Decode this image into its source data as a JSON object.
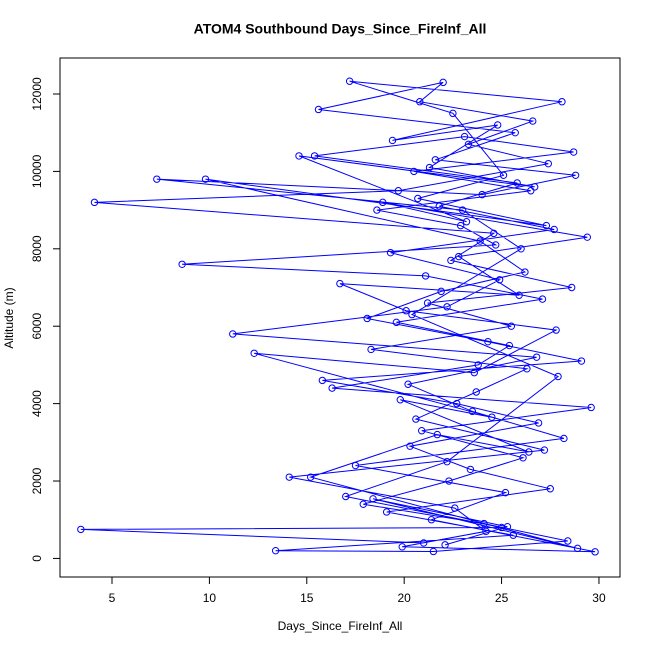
{
  "chart_data": {
    "type": "line",
    "title": "ATOM4 Southbound Days_Since_FireInf_All",
    "x_label": "Days_Since_FireInf_All",
    "y_label": "Altitude (m)",
    "color": "#0000ff",
    "x": [
      22.1,
      25.3,
      18.4,
      28.9,
      15.2,
      21.7,
      26.4,
      19.8,
      24.5,
      12.3,
      23.6,
      27.8,
      20.1,
      16.7,
      25.9,
      22.8,
      29.4,
      18.9,
      23.2,
      14.6,
      26.7,
      21.3,
      24.8,
      19.4,
      28.1,
      17.2,
      22.5,
      25.1,
      20.7,
      27.3,
      9.8,
      23.9,
      26.2,
      21.9,
      18.1,
      24.3,
      29.1,
      15.8,
      22.7,
      26.9,
      20.3,
      23.4,
      27.5,
      19.1,
      25.6,
      13.4,
      21.5,
      28.4,
      24.1,
      17.9,
      22.3,
      26.1,
      20.9,
      29.6,
      16.3,
      23.8,
      25.4,
      19.6,
      27.1,
      21.1,
      8.6,
      24.7,
      22.9,
      18.6,
      26.5,
      20.5,
      28.7,
      23.1,
      15.4,
      25.8,
      21.8,
      27.7,
      19.3,
      24.9,
      22.2,
      11.2,
      26.8,
      20.2,
      23.5,
      28.2,
      17.5,
      25.2,
      21.4,
      29.8,
      19.9,
      24.2,
      22.6,
      14.1,
      27.2,
      20.6,
      23.7,
      26.3,
      18.3,
      25.5,
      21.2,
      28.6,
      22.4,
      24.6,
      4.1,
      19.7,
      27.4,
      23.3,
      26.6,
      20.8,
      22.0,
      15.6,
      25.7,
      21.6,
      28.8,
      24.0,
      7.3,
      23.0,
      26.0,
      20.4,
      27.9,
      22.2,
      17.0,
      25.0,
      3.4,
      21.0
    ],
    "values": [
      350,
      820,
      1540,
      260,
      2100,
      3200,
      2750,
      4100,
      3650,
      5300,
      4800,
      5900,
      6400,
      7100,
      6800,
      7800,
      8300,
      9200,
      8700,
      10400,
      9600,
      10100,
      11200,
      10800,
      11800,
      12330,
      11500,
      9900,
      9300,
      8600,
      9800,
      8200,
      7400,
      6900,
      6200,
      5600,
      5100,
      4600,
      4000,
      3500,
      2900,
      2300,
      1800,
      1200,
      600,
      200,
      180,
      450,
      900,
      1400,
      2000,
      2600,
      3300,
      3900,
      4400,
      5000,
      5500,
      6100,
      6700,
      7300,
      7600,
      8100,
      8600,
      9000,
      9500,
      10000,
      10500,
      10900,
      10400,
      9700,
      9100,
      8500,
      7900,
      7200,
      6500,
      5800,
      5200,
      4500,
      3800,
      3100,
      2400,
      1700,
      1000,
      170,
      300,
      700,
      1300,
      2100,
      2800,
      3600,
      4300,
      4900,
      5400,
      6000,
      6600,
      7000,
      7700,
      8400,
      9200,
      9500,
      10200,
      10700,
      11300,
      11800,
      12300,
      11600,
      11000,
      10300,
      9900,
      9400,
      9800,
      9000,
      8000,
      6300,
      4700,
      2500,
      1600,
      800,
      750,
      400
    ],
    "xlim": [
      2.33,
      31.08
    ],
    "ylim": [
      -480,
      12930
    ],
    "xticks": [
      5,
      10,
      15,
      20,
      25,
      30
    ],
    "yticks": [
      0,
      2000,
      4000,
      6000,
      8000,
      10000,
      12000
    ]
  }
}
